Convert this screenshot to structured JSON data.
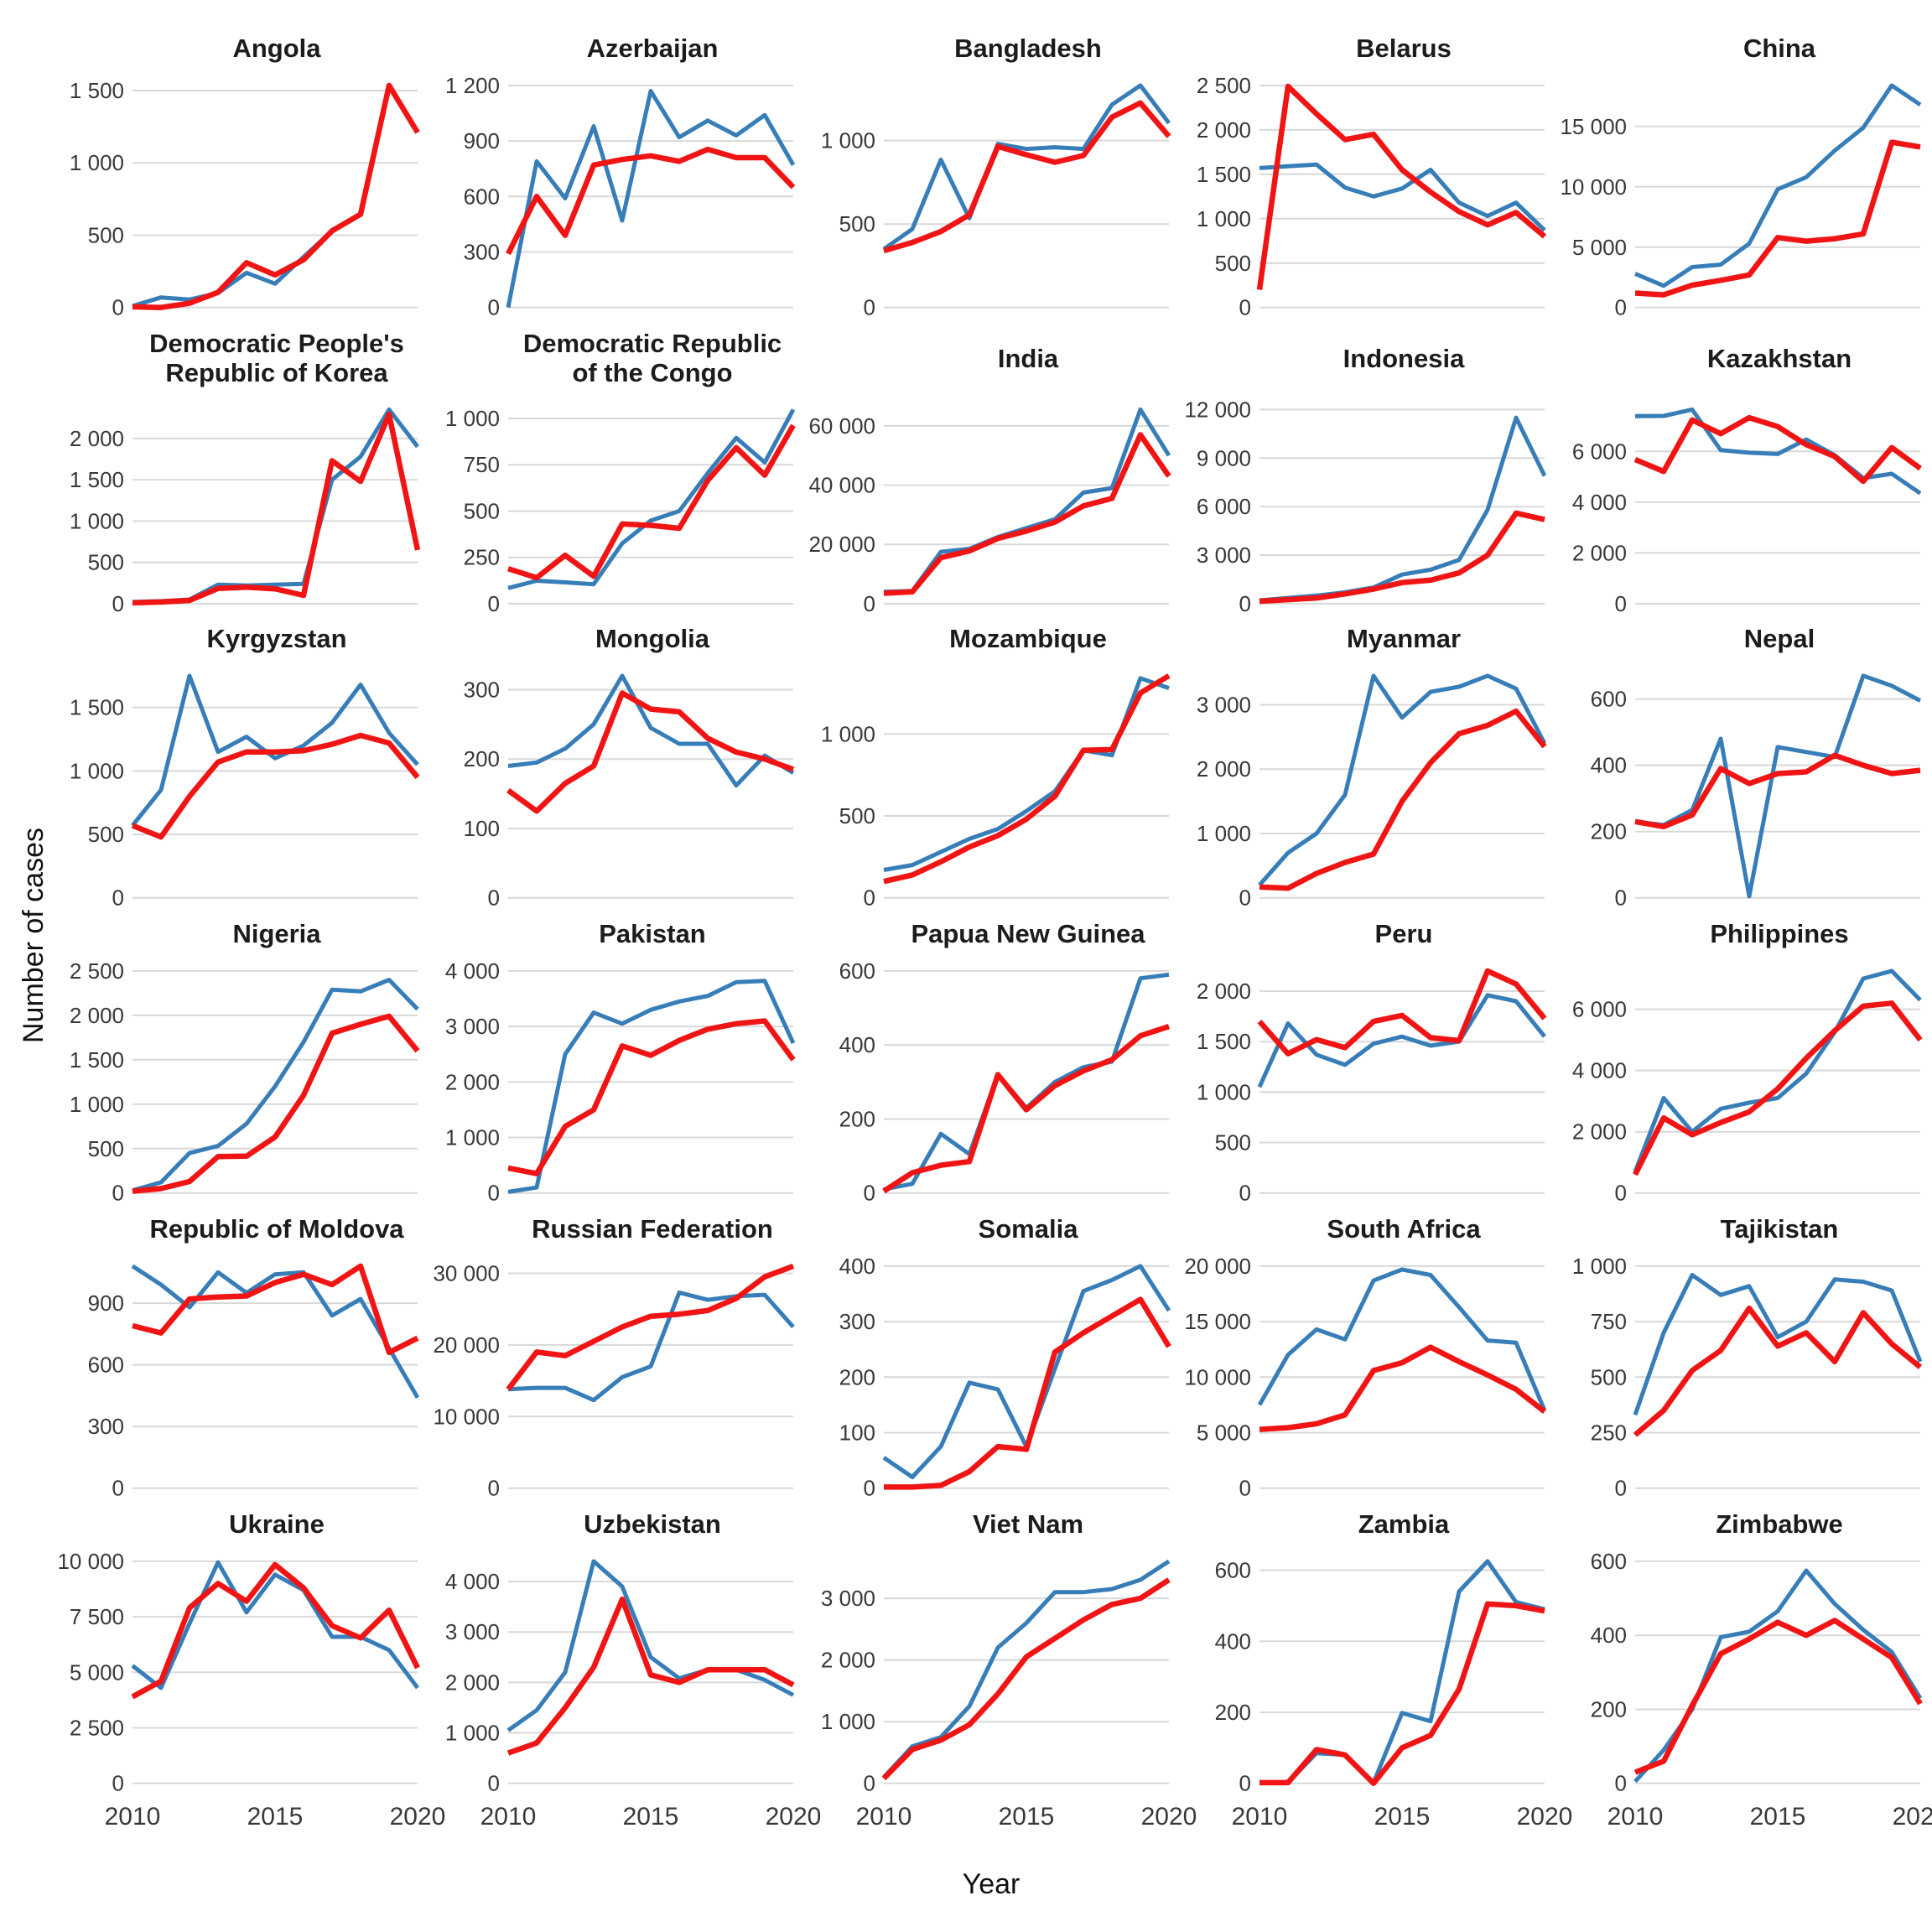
{
  "figure": {
    "y_axis_label": "Number of cases",
    "x_axis_label": "Year",
    "background": "#ffffff",
    "grid_color": "#d8d8d8",
    "tick_label_color": "#383838",
    "title_color": "#1c1c1c"
  },
  "series_colors": {
    "blue": "#377db8",
    "red": "#f11414"
  },
  "chart_data": {
    "type": "line",
    "x": [
      2010,
      2011,
      2012,
      2013,
      2014,
      2015,
      2016,
      2017,
      2018,
      2019,
      2020
    ],
    "x_ticks": [
      2010,
      2015,
      2020
    ],
    "xlabel": "Year",
    "ylabel": "Number of cases",
    "grid": "horizontal-only",
    "legend": "none",
    "panels": [
      {
        "title": "Angola",
        "y_ticks": [
          0,
          500,
          1000,
          1500
        ],
        "series": {
          "blue": [
            10,
            70,
            55,
            100,
            240,
            165,
            350,
            530,
            645,
            1535,
            1210
          ],
          "red": [
            5,
            0,
            30,
            105,
            310,
            225,
            330,
            530,
            645,
            1535,
            1210
          ]
        }
      },
      {
        "title": "Azerbaijan",
        "y_ticks": [
          0,
          300,
          600,
          900,
          1200
        ],
        "series": {
          "blue": [
            0,
            790,
            590,
            980,
            470,
            1170,
            920,
            1010,
            930,
            1040,
            770
          ],
          "red": [
            290,
            600,
            390,
            770,
            800,
            820,
            790,
            855,
            810,
            810,
            650
          ]
        }
      },
      {
        "title": "Bangladesh",
        "y_ticks": [
          0,
          500,
          1000
        ],
        "series": {
          "blue": [
            350,
            470,
            885,
            535,
            980,
            950,
            960,
            950,
            1215,
            1330,
            1105
          ],
          "red": [
            340,
            390,
            455,
            555,
            965,
            915,
            870,
            910,
            1140,
            1225,
            1025
          ]
        }
      },
      {
        "title": "Belarus",
        "y_ticks": [
          0,
          500,
          1000,
          1500,
          2000,
          2500
        ],
        "series": {
          "blue": [
            1570,
            1590,
            1610,
            1350,
            1250,
            1340,
            1550,
            1180,
            1030,
            1180,
            870
          ],
          "red": [
            200,
            2490,
            2180,
            1890,
            1950,
            1550,
            1300,
            1080,
            930,
            1070,
            800
          ]
        }
      },
      {
        "title": "China",
        "y_ticks": [
          0,
          5000,
          10000,
          15000
        ],
        "series": {
          "blue": [
            2800,
            1800,
            3350,
            3550,
            5300,
            9800,
            10800,
            13000,
            14900,
            18400,
            16800
          ],
          "red": [
            1200,
            1050,
            1850,
            2250,
            2700,
            5800,
            5500,
            5700,
            6100,
            13700,
            13300
          ]
        }
      },
      {
        "title": "Democratic People's\nRepublic of Korea",
        "y_ticks": [
          0,
          500,
          1000,
          1500,
          2000
        ],
        "series": {
          "blue": [
            20,
            30,
            50,
            230,
            220,
            230,
            240,
            1500,
            1780,
            2350,
            1900
          ],
          "red": [
            10,
            20,
            40,
            185,
            200,
            180,
            100,
            1730,
            1480,
            2290,
            650
          ]
        }
      },
      {
        "title": "Democratic Republic\nof the Congo",
        "y_ticks": [
          0,
          250,
          500,
          750,
          1000
        ],
        "series": {
          "blue": [
            84,
            124,
            115,
            105,
            325,
            448,
            500,
            705,
            895,
            763,
            1048
          ],
          "red": [
            189,
            140,
            261,
            148,
            430,
            423,
            407,
            665,
            842,
            694,
            963
          ]
        }
      },
      {
        "title": "India",
        "y_ticks": [
          0,
          20000,
          40000,
          60000
        ],
        "series": {
          "blue": [
            4000,
            4300,
            17500,
            18500,
            22500,
            25500,
            28500,
            37500,
            39000,
            65500,
            50000
          ],
          "red": [
            3500,
            4000,
            15500,
            17800,
            22000,
            24500,
            27500,
            33000,
            35500,
            57000,
            43000
          ]
        }
      },
      {
        "title": "Indonesia",
        "y_ticks": [
          0,
          3000,
          6000,
          9000,
          12000
        ],
        "series": {
          "blue": [
            200,
            350,
            500,
            700,
            1000,
            1800,
            2100,
            2700,
            5800,
            11500,
            7900
          ],
          "red": [
            150,
            250,
            350,
            600,
            900,
            1300,
            1450,
            1900,
            3000,
            5600,
            5200
          ]
        }
      },
      {
        "title": "Kazakhstan",
        "y_ticks": [
          0,
          2000,
          4000,
          6000
        ],
        "series": {
          "blue": [
            7390,
            7400,
            7650,
            6050,
            5950,
            5900,
            6470,
            5850,
            4950,
            5120,
            4350
          ],
          "red": [
            5680,
            5210,
            7240,
            6700,
            7330,
            6980,
            6270,
            5800,
            4820,
            6150,
            5330
          ]
        }
      },
      {
        "title": "Kyrgyzstan",
        "y_ticks": [
          0,
          500,
          1000,
          1500
        ],
        "series": {
          "blue": [
            570,
            850,
            1750,
            1150,
            1270,
            1100,
            1200,
            1380,
            1680,
            1300,
            1050
          ],
          "red": [
            570,
            480,
            800,
            1070,
            1150,
            1150,
            1160,
            1210,
            1280,
            1220,
            950
          ]
        }
      },
      {
        "title": "Mongolia",
        "y_ticks": [
          0,
          100,
          200,
          300
        ],
        "series": {
          "blue": [
            190,
            195,
            215,
            250,
            320,
            245,
            222,
            222,
            162,
            205,
            180
          ],
          "red": [
            155,
            125,
            165,
            190,
            295,
            272,
            268,
            230,
            210,
            200,
            185
          ]
        }
      },
      {
        "title": "Mozambique",
        "y_ticks": [
          0,
          500,
          1000
        ],
        "series": {
          "blue": [
            170,
            200,
            280,
            360,
            420,
            530,
            650,
            900,
            870,
            1340,
            1280
          ],
          "red": [
            100,
            140,
            220,
            310,
            380,
            480,
            620,
            900,
            905,
            1250,
            1355
          ]
        }
      },
      {
        "title": "Myanmar",
        "y_ticks": [
          0,
          1000,
          2000,
          3000
        ],
        "series": {
          "blue": [
            200,
            700,
            1000,
            1600,
            3450,
            2800,
            3200,
            3280,
            3450,
            3250,
            2400
          ],
          "red": [
            170,
            150,
            380,
            550,
            680,
            1500,
            2100,
            2550,
            2680,
            2900,
            2350
          ]
        }
      },
      {
        "title": "Nepal",
        "y_ticks": [
          0,
          200,
          400,
          600
        ],
        "series": {
          "blue": [
            230,
            220,
            265,
            480,
            5,
            455,
            440,
            425,
            670,
            640,
            595
          ],
          "red": [
            230,
            215,
            250,
            390,
            345,
            375,
            380,
            430,
            400,
            375,
            385
          ]
        }
      },
      {
        "title": "Nigeria",
        "y_ticks": [
          0,
          500,
          1000,
          1500,
          2000,
          2500
        ],
        "series": {
          "blue": [
            30,
            120,
            450,
            530,
            780,
            1200,
            1700,
            2290,
            2270,
            2400,
            2070
          ],
          "red": [
            20,
            50,
            130,
            410,
            415,
            630,
            1100,
            1800,
            1900,
            1990,
            1600
          ]
        }
      },
      {
        "title": "Pakistan",
        "y_ticks": [
          0,
          1000,
          2000,
          3000,
          4000
        ],
        "series": {
          "blue": [
            20,
            100,
            2500,
            3250,
            3050,
            3300,
            3450,
            3550,
            3800,
            3820,
            2700
          ],
          "red": [
            450,
            350,
            1200,
            1500,
            2650,
            2480,
            2750,
            2950,
            3050,
            3100,
            2400
          ]
        }
      },
      {
        "title": "Papua New Guinea",
        "y_ticks": [
          0,
          200,
          400,
          600
        ],
        "series": {
          "blue": [
            10,
            25,
            160,
            105,
            320,
            230,
            300,
            340,
            355,
            580,
            590
          ],
          "red": [
            5,
            55,
            75,
            85,
            320,
            225,
            290,
            330,
            360,
            425,
            450
          ]
        }
      },
      {
        "title": "Peru",
        "y_ticks": [
          0,
          500,
          1000,
          1500,
          2000
        ],
        "series": {
          "blue": [
            1050,
            1680,
            1370,
            1270,
            1480,
            1550,
            1460,
            1500,
            1960,
            1900,
            1550
          ],
          "red": [
            1700,
            1380,
            1520,
            1440,
            1700,
            1760,
            1540,
            1510,
            2200,
            2070,
            1730
          ]
        }
      },
      {
        "title": "Philippines",
        "y_ticks": [
          0,
          2000,
          4000,
          6000
        ],
        "series": {
          "blue": [
            700,
            3100,
            2000,
            2750,
            2950,
            3100,
            3900,
            5250,
            7000,
            7250,
            6300
          ],
          "red": [
            600,
            2450,
            1900,
            2300,
            2650,
            3400,
            4400,
            5300,
            6100,
            6200,
            5000
          ]
        }
      },
      {
        "title": "Republic of Moldova",
        "y_ticks": [
          0,
          300,
          600,
          900
        ],
        "series": {
          "blue": [
            1080,
            990,
            880,
            1050,
            950,
            1040,
            1050,
            840,
            920,
            680,
            440
          ],
          "red": [
            790,
            755,
            920,
            930,
            935,
            1000,
            1040,
            990,
            1080,
            660,
            730
          ]
        }
      },
      {
        "title": "Russian Federation",
        "y_ticks": [
          0,
          10000,
          20000,
          30000
        ],
        "series": {
          "blue": [
            13800,
            14000,
            14000,
            12300,
            15500,
            17000,
            27300,
            26300,
            26800,
            27000,
            22500
          ],
          "red": [
            13800,
            19000,
            18500,
            20500,
            22500,
            24000,
            24300,
            24800,
            26500,
            29500,
            31000
          ]
        }
      },
      {
        "title": "Somalia",
        "y_ticks": [
          0,
          100,
          200,
          300,
          400
        ],
        "series": {
          "blue": [
            55,
            20,
            75,
            190,
            178,
            75,
            215,
            355,
            375,
            400,
            320
          ],
          "red": [
            2,
            2,
            5,
            30,
            75,
            70,
            245,
            280,
            310,
            340,
            255
          ]
        }
      },
      {
        "title": "South Africa",
        "y_ticks": [
          0,
          5000,
          10000,
          15000,
          20000
        ],
        "series": {
          "blue": [
            7500,
            12000,
            14300,
            13400,
            18700,
            19700,
            19200,
            16300,
            13300,
            13100,
            7000
          ],
          "red": [
            5300,
            5450,
            5800,
            6600,
            10600,
            11300,
            12700,
            11400,
            10200,
            8900,
            6900
          ]
        }
      },
      {
        "title": "Tajikistan",
        "y_ticks": [
          0,
          250,
          500,
          750,
          1000
        ],
        "series": {
          "blue": [
            330,
            700,
            960,
            870,
            910,
            680,
            750,
            940,
            930,
            890,
            570
          ],
          "red": [
            240,
            350,
            530,
            620,
            810,
            640,
            700,
            570,
            790,
            650,
            545
          ]
        }
      },
      {
        "title": "Ukraine",
        "y_ticks": [
          0,
          2500,
          5000,
          7500,
          10000
        ],
        "series": {
          "blue": [
            5300,
            4300,
            7200,
            9950,
            7700,
            9400,
            8700,
            6600,
            6600,
            6000,
            4300
          ],
          "red": [
            3900,
            4600,
            7900,
            9000,
            8200,
            9850,
            8800,
            7100,
            6550,
            7800,
            5200
          ]
        }
      },
      {
        "title": "Uzbekistan",
        "y_ticks": [
          0,
          1000,
          2000,
          3000,
          4000
        ],
        "series": {
          "blue": [
            1050,
            1450,
            2200,
            4400,
            3900,
            2500,
            2080,
            2250,
            2250,
            2050,
            1750
          ],
          "red": [
            600,
            800,
            1500,
            2300,
            3650,
            2150,
            2000,
            2250,
            2250,
            2250,
            1950
          ]
        }
      },
      {
        "title": "Viet Nam",
        "y_ticks": [
          0,
          1000,
          2000,
          3000
        ],
        "series": {
          "blue": [
            100,
            600,
            750,
            1250,
            2200,
            2600,
            3100,
            3100,
            3150,
            3300,
            3600
          ],
          "red": [
            80,
            550,
            700,
            950,
            1450,
            2050,
            2350,
            2650,
            2900,
            3000,
            3300
          ]
        }
      },
      {
        "title": "Zambia",
        "y_ticks": [
          0,
          200,
          400,
          600
        ],
        "series": {
          "blue": [
            2,
            2,
            85,
            80,
            2,
            198,
            175,
            540,
            625,
            510,
            490
          ],
          "red": [
            2,
            2,
            95,
            80,
            0,
            100,
            135,
            265,
            505,
            500,
            485
          ]
        }
      },
      {
        "title": "Zimbabwe",
        "y_ticks": [
          0,
          200,
          400,
          600
        ],
        "series": {
          "blue": [
            5,
            90,
            200,
            395,
            410,
            465,
            575,
            485,
            415,
            355,
            230
          ],
          "red": [
            30,
            60,
            210,
            350,
            390,
            435,
            400,
            440,
            390,
            340,
            215
          ]
        }
      }
    ]
  }
}
